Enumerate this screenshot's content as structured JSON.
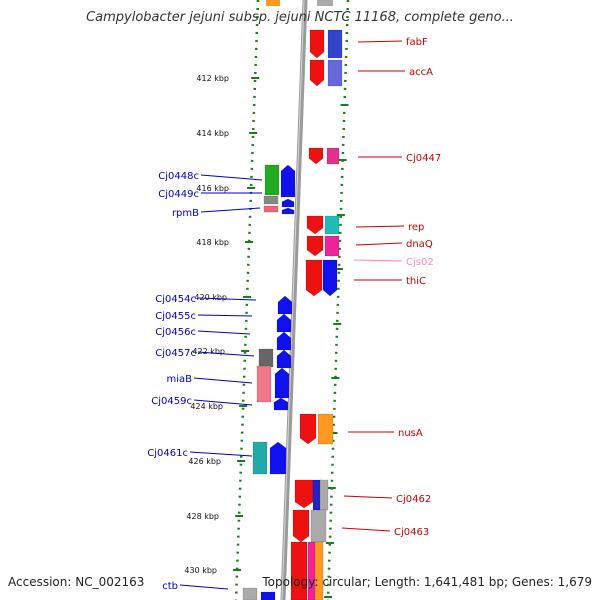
{
  "title": "Campylobacter jejuni subsp. jejuni NCTC 11168, complete geno...",
  "footer": {
    "accession": "Accession: NC_002163",
    "summary": "Topology: circular; Length: 1,641,481 bp; Genes: 1,679"
  },
  "colors": {
    "forward_label": "#cc0000",
    "reverse_label": "#0000cc",
    "backbone": "#888888",
    "ruler_dots": "#1a7f1a",
    "faded_label": "#ff88bb"
  },
  "ruler_ticks": [
    {
      "text": "412 kbp"
    },
    {
      "text": "414 kbp"
    },
    {
      "text": "416 kbp"
    },
    {
      "text": "418 kbp"
    },
    {
      "text": "420 kbp"
    },
    {
      "text": "422 kbp"
    },
    {
      "text": "424 kbp"
    },
    {
      "text": "426 kbp"
    },
    {
      "text": "428 kbp"
    },
    {
      "text": "430 kbp"
    }
  ],
  "forward_genes": [
    {
      "name": "fabF"
    },
    {
      "name": "accA"
    },
    {
      "name": "Cj0447"
    },
    {
      "name": "rep"
    },
    {
      "name": "dnaQ"
    },
    {
      "name": "Cjs02"
    },
    {
      "name": "thiC"
    },
    {
      "name": "nusA"
    },
    {
      "name": "Cj0462"
    },
    {
      "name": "Cj0463"
    }
  ],
  "reverse_genes": [
    {
      "name": "Cj0448c"
    },
    {
      "name": "Cj0449c"
    },
    {
      "name": "rpmB"
    },
    {
      "name": "Cj0454c"
    },
    {
      "name": "Cj0455c"
    },
    {
      "name": "Cj0456c"
    },
    {
      "name": "Cj0457c"
    },
    {
      "name": "miaB"
    },
    {
      "name": "Cj0459c"
    },
    {
      "name": "Cj0461c"
    },
    {
      "name": "ctb"
    }
  ]
}
